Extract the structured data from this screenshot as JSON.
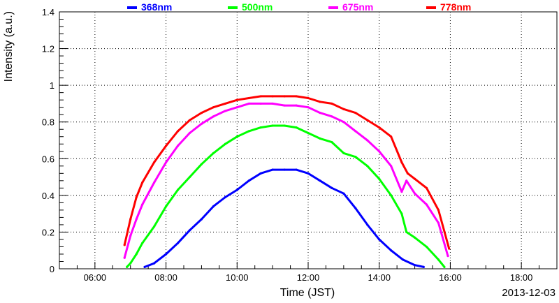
{
  "chart_data": {
    "type": "line",
    "xlabel": "Time (JST)",
    "ylabel": "Intensity (a.u.)",
    "date_label": "2013-12-03",
    "xlim": [
      "05:00",
      "19:00"
    ],
    "ylim": [
      0,
      1.4
    ],
    "x_ticks": [
      "06:00",
      "08:00",
      "10:00",
      "12:00",
      "14:00",
      "16:00",
      "18:00"
    ],
    "y_ticks": [
      "0",
      "0.2",
      "0.4",
      "0.6",
      "0.8",
      "1",
      "1.2",
      "1.4"
    ],
    "grid": true,
    "legend_position": "top",
    "series": [
      {
        "name": "368nm",
        "color": "#0000ff",
        "points": [
          [
            "07:24",
            0.01
          ],
          [
            "07:40",
            0.03
          ],
          [
            "08:00",
            0.08
          ],
          [
            "08:20",
            0.14
          ],
          [
            "08:40",
            0.21
          ],
          [
            "09:00",
            0.27
          ],
          [
            "09:20",
            0.34
          ],
          [
            "09:40",
            0.39
          ],
          [
            "10:00",
            0.43
          ],
          [
            "10:20",
            0.48
          ],
          [
            "10:40",
            0.52
          ],
          [
            "11:00",
            0.54
          ],
          [
            "11:20",
            0.54
          ],
          [
            "11:40",
            0.54
          ],
          [
            "12:00",
            0.52
          ],
          [
            "12:20",
            0.48
          ],
          [
            "12:40",
            0.44
          ],
          [
            "13:00",
            0.41
          ],
          [
            "13:20",
            0.33
          ],
          [
            "13:40",
            0.24
          ],
          [
            "14:00",
            0.16
          ],
          [
            "14:20",
            0.1
          ],
          [
            "14:40",
            0.05
          ],
          [
            "15:00",
            0.02
          ],
          [
            "15:15",
            0.01
          ]
        ]
      },
      {
        "name": "500nm",
        "color": "#00ff00",
        "points": [
          [
            "06:54",
            0.01
          ],
          [
            "07:00",
            0.03
          ],
          [
            "07:10",
            0.08
          ],
          [
            "07:20",
            0.14
          ],
          [
            "07:40",
            0.23
          ],
          [
            "08:00",
            0.34
          ],
          [
            "08:20",
            0.43
          ],
          [
            "08:40",
            0.5
          ],
          [
            "09:00",
            0.57
          ],
          [
            "09:20",
            0.63
          ],
          [
            "09:40",
            0.68
          ],
          [
            "10:00",
            0.72
          ],
          [
            "10:20",
            0.75
          ],
          [
            "10:40",
            0.77
          ],
          [
            "11:00",
            0.78
          ],
          [
            "11:20",
            0.78
          ],
          [
            "11:40",
            0.77
          ],
          [
            "12:00",
            0.74
          ],
          [
            "12:20",
            0.71
          ],
          [
            "12:40",
            0.69
          ],
          [
            "13:00",
            0.63
          ],
          [
            "13:20",
            0.61
          ],
          [
            "13:40",
            0.56
          ],
          [
            "14:00",
            0.49
          ],
          [
            "14:20",
            0.4
          ],
          [
            "14:38",
            0.3
          ],
          [
            "14:46",
            0.2
          ],
          [
            "15:00",
            0.17
          ],
          [
            "15:20",
            0.12
          ],
          [
            "15:40",
            0.05
          ],
          [
            "15:50",
            0.01
          ]
        ]
      },
      {
        "name": "675nm",
        "color": "#ff00ff",
        "points": [
          [
            "06:50",
            0.06
          ],
          [
            "07:00",
            0.18
          ],
          [
            "07:10",
            0.27
          ],
          [
            "07:20",
            0.35
          ],
          [
            "07:40",
            0.47
          ],
          [
            "08:00",
            0.58
          ],
          [
            "08:20",
            0.67
          ],
          [
            "08:40",
            0.74
          ],
          [
            "09:00",
            0.79
          ],
          [
            "09:20",
            0.83
          ],
          [
            "09:40",
            0.86
          ],
          [
            "10:00",
            0.88
          ],
          [
            "10:20",
            0.9
          ],
          [
            "10:40",
            0.9
          ],
          [
            "11:00",
            0.9
          ],
          [
            "11:20",
            0.89
          ],
          [
            "11:40",
            0.89
          ],
          [
            "12:00",
            0.88
          ],
          [
            "12:20",
            0.85
          ],
          [
            "12:40",
            0.83
          ],
          [
            "13:00",
            0.8
          ],
          [
            "13:20",
            0.75
          ],
          [
            "13:40",
            0.7
          ],
          [
            "14:00",
            0.64
          ],
          [
            "14:20",
            0.56
          ],
          [
            "14:38",
            0.42
          ],
          [
            "14:46",
            0.48
          ],
          [
            "15:00",
            0.41
          ],
          [
            "15:20",
            0.35
          ],
          [
            "15:40",
            0.25
          ],
          [
            "15:56",
            0.07
          ]
        ]
      },
      {
        "name": "778nm",
        "color": "#ff0000",
        "points": [
          [
            "06:50",
            0.13
          ],
          [
            "07:00",
            0.27
          ],
          [
            "07:10",
            0.39
          ],
          [
            "07:20",
            0.47
          ],
          [
            "07:40",
            0.58
          ],
          [
            "08:00",
            0.67
          ],
          [
            "08:20",
            0.75
          ],
          [
            "08:40",
            0.81
          ],
          [
            "09:00",
            0.85
          ],
          [
            "09:20",
            0.88
          ],
          [
            "09:40",
            0.9
          ],
          [
            "10:00",
            0.92
          ],
          [
            "10:20",
            0.93
          ],
          [
            "10:40",
            0.94
          ],
          [
            "11:00",
            0.94
          ],
          [
            "11:20",
            0.94
          ],
          [
            "11:40",
            0.94
          ],
          [
            "12:00",
            0.93
          ],
          [
            "12:20",
            0.91
          ],
          [
            "12:40",
            0.9
          ],
          [
            "13:00",
            0.87
          ],
          [
            "13:20",
            0.85
          ],
          [
            "13:40",
            0.81
          ],
          [
            "14:00",
            0.77
          ],
          [
            "14:20",
            0.72
          ],
          [
            "14:38",
            0.58
          ],
          [
            "14:48",
            0.52
          ],
          [
            "15:00",
            0.49
          ],
          [
            "15:20",
            0.44
          ],
          [
            "15:40",
            0.32
          ],
          [
            "15:58",
            0.11
          ]
        ]
      }
    ]
  }
}
